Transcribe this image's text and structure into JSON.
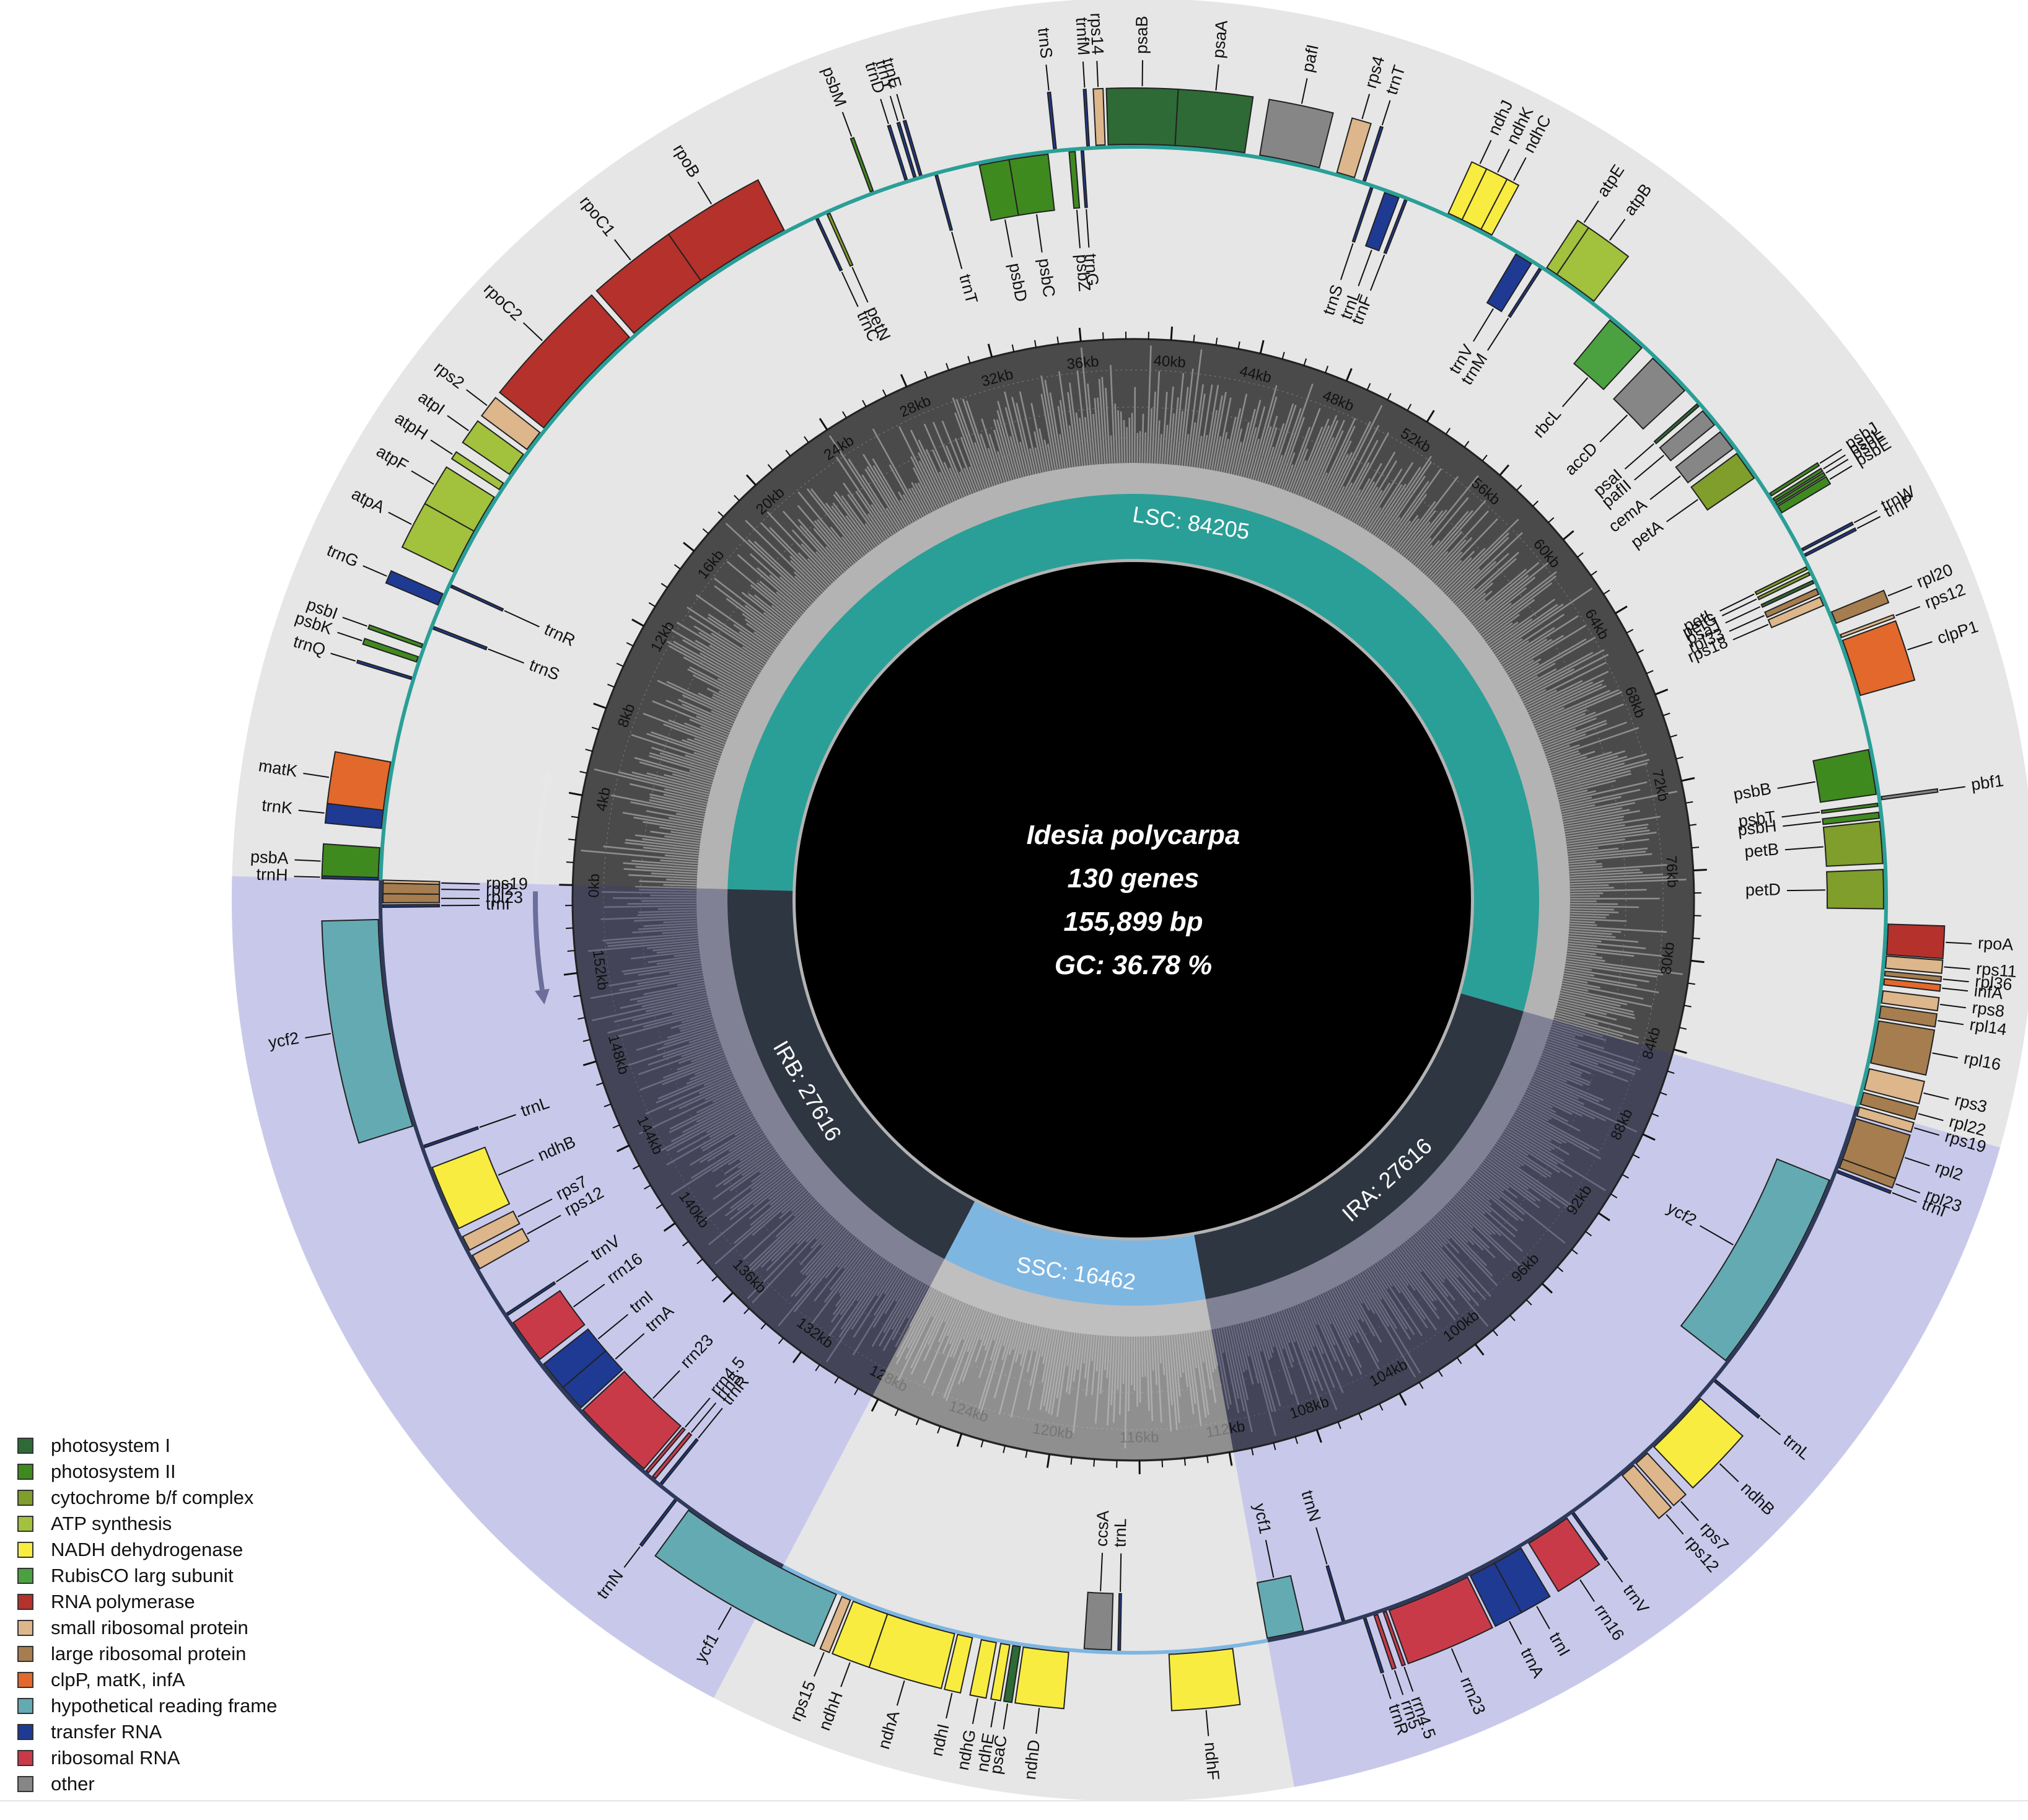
{
  "title": {
    "species": "Idesia polycarpa",
    "genes": "130 genes",
    "length": "155,899 bp",
    "gc": "GC: 36.78 %"
  },
  "genome_length": 155899,
  "regions": [
    {
      "name": "LSC",
      "label": "LSC: 84205",
      "start": 0,
      "end": 84205,
      "color": "#2a9f97"
    },
    {
      "name": "IRA",
      "label": "IRA: 27616",
      "start": 84205,
      "end": 111821,
      "color": "#2d3641"
    },
    {
      "name": "SSC",
      "label": "SSC: 16462",
      "start": 111821,
      "end": 128283,
      "color": "#7eb6e2"
    },
    {
      "name": "IRB",
      "label": "IRB: 27616",
      "start": 128283,
      "end": 155899,
      "color": "#2d3641"
    }
  ],
  "ticks": [
    "0kb",
    "4kb",
    "8kb",
    "12kb",
    "16kb",
    "20kb",
    "24kb",
    "28kb",
    "32kb",
    "36kb",
    "40kb",
    "44kb",
    "48kb",
    "52kb",
    "56kb",
    "60kb",
    "64kb",
    "68kb",
    "72kb",
    "76kb",
    "80kb",
    "84kb",
    "88kb",
    "92kb",
    "96kb",
    "100kb",
    "104kb",
    "108kb",
    "112kb",
    "116kb",
    "120kb",
    "124kb",
    "128kb",
    "132kb",
    "136kb",
    "140kb",
    "144kb",
    "148kb",
    "152kb"
  ],
  "tick_step_kb": 4,
  "colors": {
    "photosystem_I": "#2d6a35",
    "photosystem_II": "#3f8a1f",
    "cytochrome": "#7f9e2b",
    "atp": "#a2c13d",
    "ndh": "#f8ec41",
    "rubisco": "#4ba140",
    "rna_pol": "#b5312b",
    "small_ribo": "#ddb68b",
    "large_ribo": "#a67d4f",
    "clp": "#e3682b",
    "ycf": "#64aab3",
    "trna": "#1f3a93",
    "rrna": "#c93a49",
    "other": "#868686",
    "ring_bg": "#e6e6e6",
    "ir_shade": "#c8c9ea",
    "gc_dark": "#4a4a4a",
    "gc_light": "#b3b3b3"
  },
  "legend": [
    {
      "label": "photosystem I",
      "color": "#2d6a35"
    },
    {
      "label": "photosystem II",
      "color": "#3f8a1f"
    },
    {
      "label": "cytochrome b/f complex",
      "color": "#7f9e2b"
    },
    {
      "label": "ATP synthesis",
      "color": "#a2c13d"
    },
    {
      "label": "NADH dehydrogenase",
      "color": "#f8ec41"
    },
    {
      "label": "RubisCO larg subunit",
      "color": "#4ba140"
    },
    {
      "label": "RNA polymerase",
      "color": "#b5312b"
    },
    {
      "label": "small ribosomal protein",
      "color": "#ddb68b"
    },
    {
      "label": "large ribosomal protein",
      "color": "#a67d4f"
    },
    {
      "label": "clpP, matK, infA",
      "color": "#e3682b"
    },
    {
      "label": "hypothetical reading frame",
      "color": "#64aab3"
    },
    {
      "label": "transfer RNA",
      "color": "#1f3a93"
    },
    {
      "label": "ribosomal RNA",
      "color": "#c93a49"
    },
    {
      "label": "other",
      "color": "#868686"
    }
  ],
  "genes": [
    {
      "n": "psbA",
      "c": "photosystem_II",
      "s": 1,
      "e": 1060,
      "o": 1
    },
    {
      "n": "trnH",
      "c": "trna",
      "s": 0,
      "e": 80,
      "o": 1
    },
    {
      "n": "trnK",
      "c": "trna",
      "s": 1700,
      "e": 2300,
      "o": 1
    },
    {
      "n": "matK",
      "c": "clp",
      "s": 2300,
      "e": 3900,
      "o": 1
    },
    {
      "n": "trnQ",
      "c": "trna",
      "s": 6700,
      "e": 6780,
      "o": 1
    },
    {
      "n": "psbK",
      "c": "photosystem_II",
      "s": 7300,
      "e": 7480,
      "o": 1
    },
    {
      "n": "psbI",
      "c": "photosystem_II",
      "s": 7800,
      "e": 7920,
      "o": 1
    },
    {
      "n": "trnS",
      "c": "trna",
      "s": 8500,
      "e": 8590,
      "o": -1
    },
    {
      "n": "trnG",
      "c": "trna",
      "s": 9300,
      "e": 9700,
      "o": 1
    },
    {
      "n": "trnR",
      "c": "trna",
      "s": 10000,
      "e": 10080,
      "o": -1
    },
    {
      "n": "atpA",
      "c": "atp",
      "s": 10500,
      "e": 12000,
      "o": 1
    },
    {
      "n": "atpF",
      "c": "atp",
      "s": 12000,
      "e": 13300,
      "o": 1
    },
    {
      "n": "atpH",
      "c": "atp",
      "s": 13600,
      "e": 13850,
      "o": 1
    },
    {
      "n": "atpI",
      "c": "atp",
      "s": 14200,
      "e": 15000,
      "o": 1
    },
    {
      "n": "rps2",
      "c": "small_ribo",
      "s": 15200,
      "e": 15900,
      "o": 1
    },
    {
      "n": "rpoC2",
      "c": "rna_pol",
      "s": 16100,
      "e": 20200,
      "o": 1
    },
    {
      "n": "rpoC1",
      "c": "rna_pol",
      "s": 20400,
      "e": 23200,
      "o": 1
    },
    {
      "n": "rpoB",
      "c": "rna_pol",
      "s": 23200,
      "e": 26400,
      "o": 1
    },
    {
      "n": "trnC",
      "c": "trna",
      "s": 27500,
      "e": 27580,
      "o": -1
    },
    {
      "n": "petN",
      "c": "cytochrome",
      "s": 27900,
      "e": 28000,
      "o": -1
    },
    {
      "n": "psbM",
      "c": "photosystem_II",
      "s": 29500,
      "e": 29600,
      "o": 1
    },
    {
      "n": "trnD",
      "c": "trna",
      "s": 30700,
      "e": 30780,
      "o": 1
    },
    {
      "n": "trnY",
      "c": "trna",
      "s": 31000,
      "e": 31080,
      "o": 1
    },
    {
      "n": "trnE",
      "c": "trna",
      "s": 31200,
      "e": 31280,
      "o": 1
    },
    {
      "n": "trnT",
      "c": "trna",
      "s": 31700,
      "e": 31780,
      "o": -1
    },
    {
      "n": "psbD",
      "c": "photosystem_II",
      "s": 33200,
      "e": 34200,
      "o": -1
    },
    {
      "n": "psbC",
      "c": "photosystem_II",
      "s": 34200,
      "e": 35500,
      "o": -1
    },
    {
      "n": "trnS",
      "c": "trna",
      "s": 35700,
      "e": 35790,
      "o": 1
    },
    {
      "n": "psbZ",
      "c": "photosystem_II",
      "s": 36200,
      "e": 36400,
      "o": -1
    },
    {
      "n": "trnG",
      "c": "trna",
      "s": 36600,
      "e": 36680,
      "o": -1
    },
    {
      "n": "trnfM",
      "c": "trna",
      "s": 36800,
      "e": 36880,
      "o": 1
    },
    {
      "n": "rps14",
      "c": "small_ribo",
      "s": 37100,
      "e": 37400,
      "o": 1
    },
    {
      "n": "psaB",
      "c": "photosystem_I",
      "s": 37500,
      "e": 39700,
      "o": 1
    },
    {
      "n": "psaA",
      "c": "photosystem_I",
      "s": 39700,
      "e": 42000,
      "o": 1
    },
    {
      "n": "pafI",
      "c": "other",
      "s": 42500,
      "e": 44500,
      "o": 1
    },
    {
      "n": "rps4",
      "c": "small_ribo",
      "s": 45100,
      "e": 45700,
      "o": 1
    },
    {
      "n": "trnT",
      "c": "trna",
      "s": 46000,
      "e": 46080,
      "o": 1
    },
    {
      "n": "trnS",
      "c": "trna",
      "s": 46300,
      "e": 46380,
      "o": -1
    },
    {
      "n": "trnL",
      "c": "trna",
      "s": 46800,
      "e": 47300,
      "o": -1
    },
    {
      "n": "trnF",
      "c": "trna",
      "s": 47500,
      "e": 47580,
      "o": -1
    },
    {
      "n": "ndhJ",
      "c": "ndh",
      "s": 49000,
      "e": 49500,
      "o": 1
    },
    {
      "n": "ndhK",
      "c": "ndh",
      "s": 49500,
      "e": 50200,
      "o": 1
    },
    {
      "n": "ndhC",
      "c": "ndh",
      "s": 50200,
      "e": 50600,
      "o": 1
    },
    {
      "n": "trnV",
      "c": "trna",
      "s": 51600,
      "e": 52200,
      "o": -1
    },
    {
      "n": "trnM",
      "c": "trna",
      "s": 52500,
      "e": 52580,
      "o": -1
    },
    {
      "n": "atpE",
      "c": "atp",
      "s": 52700,
      "e": 53100,
      "o": 1
    },
    {
      "n": "atpB",
      "c": "atp",
      "s": 53100,
      "e": 54600,
      "o": 1
    },
    {
      "n": "rbcL",
      "c": "rubisco",
      "s": 55400,
      "e": 56800,
      "o": -1
    },
    {
      "n": "accD",
      "c": "other",
      "s": 57300,
      "e": 58800,
      "o": -1
    },
    {
      "n": "psaI",
      "c": "photosystem_I",
      "s": 59400,
      "e": 59500,
      "o": -1
    },
    {
      "n": "pafII",
      "c": "other",
      "s": 59700,
      "e": 60300,
      "o": -1
    },
    {
      "n": "cemA",
      "c": "other",
      "s": 60600,
      "e": 61300,
      "o": -1
    },
    {
      "n": "petA",
      "c": "cytochrome",
      "s": 61500,
      "e": 62500,
      "o": -1
    },
    {
      "n": "psbJ",
      "c": "photosystem_II",
      "s": 63200,
      "e": 63300,
      "o": 1
    },
    {
      "n": "psbL",
      "c": "photosystem_II",
      "s": 63400,
      "e": 63500,
      "o": 1
    },
    {
      "n": "psbF",
      "c": "photosystem_II",
      "s": 63550,
      "e": 63650,
      "o": 1
    },
    {
      "n": "psbE",
      "c": "photosystem_II",
      "s": 63700,
      "e": 63950,
      "o": 1
    },
    {
      "n": "trnW",
      "c": "trna",
      "s": 65300,
      "e": 65380,
      "o": 1
    },
    {
      "n": "trnP",
      "c": "trna",
      "s": 65500,
      "e": 65580,
      "o": 1
    },
    {
      "n": "petL",
      "c": "cytochrome",
      "s": 65900,
      "e": 66000,
      "o": -1
    },
    {
      "n": "petG",
      "c": "cytochrome",
      "s": 66100,
      "e": 66200,
      "o": -1
    },
    {
      "n": "psaJ",
      "c": "photosystem_I",
      "s": 66400,
      "e": 66500,
      "o": -1
    },
    {
      "n": "rpl33",
      "c": "large_ribo",
      "s": 66700,
      "e": 66900,
      "o": -1
    },
    {
      "n": "rps18",
      "c": "small_ribo",
      "s": 67000,
      "e": 67300,
      "o": -1
    },
    {
      "n": "rpl20",
      "c": "large_ribo",
      "s": 67600,
      "e": 68000,
      "o": 1
    },
    {
      "n": "rps12",
      "c": "small_ribo",
      "s": 68400,
      "e": 68500,
      "o": 1
    },
    {
      "n": "clpP1",
      "c": "clp",
      "s": 68600,
      "e": 70500,
      "o": 1
    },
    {
      "n": "psbB",
      "c": "photosystem_II",
      "s": 72300,
      "e": 73800,
      "o": -1
    },
    {
      "n": "pbf1",
      "c": "other",
      "s": 73900,
      "e": 74000,
      "o": 1
    },
    {
      "n": "psbT",
      "c": "photosystem_II",
      "s": 74100,
      "e": 74200,
      "o": -1
    },
    {
      "n": "psbH",
      "c": "photosystem_II",
      "s": 74400,
      "e": 74600,
      "o": -1
    },
    {
      "n": "petB",
      "c": "cytochrome",
      "s": 74700,
      "e": 76100,
      "o": -1
    },
    {
      "n": "petD",
      "c": "cytochrome",
      "s": 76300,
      "e": 77600,
      "o": -1
    },
    {
      "n": "rpoA",
      "c": "rna_pol",
      "s": 78100,
      "e": 79100,
      "o": 1
    },
    {
      "n": "rps11",
      "c": "small_ribo",
      "s": 79150,
      "e": 79550,
      "o": 1
    },
    {
      "n": "rpl36",
      "c": "large_ribo",
      "s": 79650,
      "e": 79800,
      "o": 1
    },
    {
      "n": "infA",
      "c": "clp",
      "s": 79900,
      "e": 80100,
      "o": 1
    },
    {
      "n": "rps8",
      "c": "small_ribo",
      "s": 80300,
      "e": 80700,
      "o": 1
    },
    {
      "n": "rpl14",
      "c": "large_ribo",
      "s": 80800,
      "e": 81200,
      "o": 1
    },
    {
      "n": "rpl16",
      "c": "large_ribo",
      "s": 81300,
      "e": 82700,
      "o": 1
    },
    {
      "n": "rps3",
      "c": "small_ribo",
      "s": 82900,
      "e": 83600,
      "o": 1
    },
    {
      "n": "rpl22",
      "c": "large_ribo",
      "s": 83700,
      "e": 84100,
      "o": 1
    },
    {
      "n": "rps19",
      "c": "small_ribo",
      "s": 84200,
      "e": 84500,
      "o": 1
    },
    {
      "n": "rpl2",
      "c": "large_ribo",
      "s": 84600,
      "e": 86000,
      "o": 1
    },
    {
      "n": "rpl23",
      "c": "large_ribo",
      "s": 86000,
      "e": 86300,
      "o": 1
    },
    {
      "n": "trnI",
      "c": "trna",
      "s": 86400,
      "e": 86480,
      "o": 1
    },
    {
      "n": "ycf2",
      "c": "ycf",
      "s": 86800,
      "e": 93700,
      "o": -1
    },
    {
      "n": "trnL",
      "c": "trna",
      "s": 94400,
      "e": 94480,
      "o": 1
    },
    {
      "n": "ndhB",
      "c": "ndh",
      "s": 95200,
      "e": 97400,
      "o": 1
    },
    {
      "n": "rps7",
      "c": "small_ribo",
      "s": 97700,
      "e": 98200,
      "o": 1
    },
    {
      "n": "rps12",
      "c": "small_ribo",
      "s": 98300,
      "e": 98800,
      "o": 1
    },
    {
      "n": "trnV",
      "c": "trna",
      "s": 100800,
      "e": 100880,
      "o": 1
    },
    {
      "n": "rrn16",
      "c": "rrna",
      "s": 101100,
      "e": 102600,
      "o": 1
    },
    {
      "n": "trnI",
      "c": "trna",
      "s": 102900,
      "e": 103900,
      "o": 1
    },
    {
      "n": "trnA",
      "c": "trna",
      "s": 103900,
      "e": 104800,
      "o": 1
    },
    {
      "n": "rrn23",
      "c": "rrna",
      "s": 104900,
      "e": 107700,
      "o": 1
    },
    {
      "n": "rrn4.5",
      "c": "rrna",
      "s": 107800,
      "e": 107900,
      "o": 1
    },
    {
      "n": "rrn5",
      "c": "rrna",
      "s": 108100,
      "e": 108220,
      "o": 1
    },
    {
      "n": "trnR",
      "c": "trna",
      "s": 108500,
      "e": 108580,
      "o": 1
    },
    {
      "n": "trnN",
      "c": "trna",
      "s": 109200,
      "e": 109280,
      "o": -1
    },
    {
      "n": "ycf1",
      "c": "ycf",
      "s": 110600,
      "e": 111821,
      "o": -1
    },
    {
      "n": "ndhF",
      "c": "ndh",
      "s": 113000,
      "e": 115100,
      "o": 1
    },
    {
      "n": "trnL",
      "c": "trna",
      "s": 116700,
      "e": 116780,
      "o": -1
    },
    {
      "n": "ccsA",
      "c": "other",
      "s": 117000,
      "e": 117900,
      "o": -1
    },
    {
      "n": "ndhD",
      "c": "ndh",
      "s": 118400,
      "e": 119900,
      "o": 1
    },
    {
      "n": "psaC",
      "c": "photosystem_I",
      "s": 120000,
      "e": 120250,
      "o": 1
    },
    {
      "n": "ndhE",
      "c": "ndh",
      "s": 120350,
      "e": 120650,
      "o": 1
    },
    {
      "n": "ndhG",
      "c": "ndh",
      "s": 120800,
      "e": 121300,
      "o": 1
    },
    {
      "n": "ndhI",
      "c": "ndh",
      "s": 121600,
      "e": 122100,
      "o": 1
    },
    {
      "n": "ndhA",
      "c": "ndh",
      "s": 122200,
      "e": 124500,
      "o": 1
    },
    {
      "n": "ndhH",
      "c": "ndh",
      "s": 124500,
      "e": 125700,
      "o": 1
    },
    {
      "n": "rps15",
      "c": "small_ribo",
      "s": 125800,
      "e": 126100,
      "o": 1
    },
    {
      "n": "ycf1",
      "c": "ycf",
      "s": 126300,
      "e": 131900,
      "o": 1
    },
    {
      "n": "trnN",
      "c": "trna",
      "s": 132400,
      "e": 132480,
      "o": 1
    },
    {
      "n": "trnR",
      "c": "trna",
      "s": 133100,
      "e": 133180,
      "o": -1
    },
    {
      "n": "rrn5",
      "c": "rrna",
      "s": 133400,
      "e": 133520,
      "o": -1
    },
    {
      "n": "rrn4.5",
      "c": "rrna",
      "s": 133700,
      "e": 133800,
      "o": -1
    },
    {
      "n": "rrn23",
      "c": "rrna",
      "s": 133900,
      "e": 136700,
      "o": -1
    },
    {
      "n": "trnA",
      "c": "trna",
      "s": 136800,
      "e": 137700,
      "o": -1
    },
    {
      "n": "trnI",
      "c": "trna",
      "s": 137700,
      "e": 138700,
      "o": -1
    },
    {
      "n": "rrn16",
      "c": "rrna",
      "s": 138900,
      "e": 140400,
      "o": -1
    },
    {
      "n": "trnV",
      "c": "trna",
      "s": 140700,
      "e": 140780,
      "o": -1
    },
    {
      "n": "rps12",
      "c": "small_ribo",
      "s": 142500,
      "e": 143000,
      "o": -1
    },
    {
      "n": "rps7",
      "c": "small_ribo",
      "s": 143200,
      "e": 143700,
      "o": -1
    },
    {
      "n": "ndhB",
      "c": "ndh",
      "s": 144000,
      "e": 146200,
      "o": -1
    },
    {
      "n": "trnL",
      "c": "trna",
      "s": 146900,
      "e": 146980,
      "o": -1
    },
    {
      "n": "ycf2",
      "c": "ycf",
      "s": 147700,
      "e": 154600,
      "o": 1
    },
    {
      "n": "trnI",
      "c": "trna",
      "s": 155000,
      "e": 155080,
      "o": -1
    },
    {
      "n": "rpl23",
      "c": "large_ribo",
      "s": 155150,
      "e": 155450,
      "o": -1
    },
    {
      "n": "rpl2",
      "c": "large_ribo",
      "s": 155450,
      "e": 155800,
      "o": -1
    },
    {
      "n": "rps19",
      "c": "small_ribo",
      "s": 155800,
      "e": 155899,
      "o": -1
    }
  ]
}
